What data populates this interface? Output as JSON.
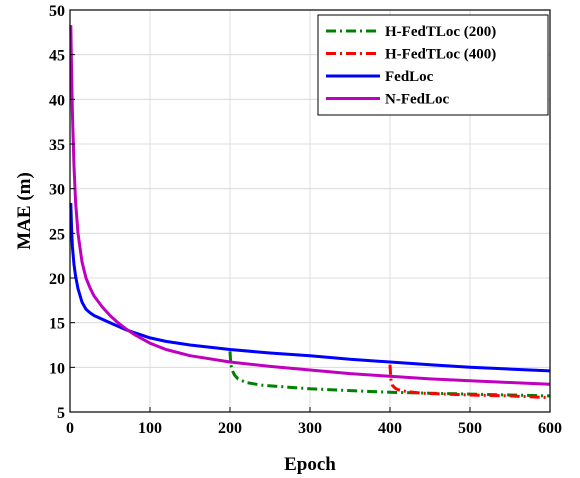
{
  "chart_data": {
    "type": "line",
    "xlabel": "Epoch",
    "ylabel": "MAE (m)",
    "xlim": [
      0,
      600
    ],
    "ylim": [
      5,
      50
    ],
    "xticks": [
      0,
      100,
      200,
      300,
      400,
      500,
      600
    ],
    "yticks": [
      5,
      10,
      15,
      20,
      25,
      30,
      35,
      40,
      45,
      50
    ],
    "grid": true,
    "legend_position": "top-right",
    "series": [
      {
        "name": "H-FedTLoc (200)",
        "color": "#008000",
        "dash": "dash-dot",
        "x": [
          200,
          201,
          203,
          206,
          210,
          220,
          240,
          270,
          300,
          350,
          400,
          450,
          500,
          550,
          600
        ],
        "y": [
          11.8,
          10.3,
          9.6,
          9.1,
          8.7,
          8.3,
          8.0,
          7.8,
          7.6,
          7.4,
          7.2,
          7.1,
          7.0,
          6.9,
          6.8
        ]
      },
      {
        "name": "H-FedTLoc (400)",
        "color": "#ff0000",
        "dash": "dash-dot",
        "x": [
          400,
          401,
          403,
          406,
          410,
          420,
          440,
          470,
          500,
          550,
          600
        ],
        "y": [
          10.3,
          8.7,
          8.0,
          7.7,
          7.5,
          7.3,
          7.1,
          7.0,
          6.9,
          6.8,
          6.6
        ]
      },
      {
        "name": "FedLoc",
        "color": "#0000ff",
        "dash": "solid",
        "x": [
          1,
          2,
          3,
          5,
          7,
          10,
          15,
          20,
          25,
          30,
          40,
          50,
          60,
          70,
          80,
          90,
          100,
          120,
          150,
          200,
          250,
          300,
          350,
          400,
          450,
          500,
          550,
          600
        ],
        "y": [
          28.4,
          25.5,
          23.5,
          21.5,
          20.2,
          18.8,
          17.3,
          16.5,
          16.1,
          15.8,
          15.4,
          15.0,
          14.6,
          14.2,
          13.9,
          13.6,
          13.3,
          12.9,
          12.5,
          12.0,
          11.6,
          11.3,
          10.9,
          10.6,
          10.3,
          10.0,
          9.8,
          9.6
        ]
      },
      {
        "name": "N-FedLoc",
        "color": "#c000c0",
        "dash": "solid",
        "x": [
          1,
          2,
          3,
          5,
          7,
          10,
          15,
          20,
          25,
          30,
          40,
          50,
          60,
          70,
          80,
          100,
          120,
          150,
          200,
          250,
          300,
          350,
          400,
          450,
          500,
          550,
          600
        ],
        "y": [
          48.3,
          43.0,
          38.5,
          32.5,
          28.5,
          25.0,
          21.8,
          20.0,
          18.9,
          18.0,
          16.8,
          15.8,
          15.0,
          14.3,
          13.7,
          12.7,
          12.0,
          11.3,
          10.6,
          10.1,
          9.7,
          9.3,
          9.0,
          8.7,
          8.5,
          8.3,
          8.1
        ]
      }
    ]
  }
}
